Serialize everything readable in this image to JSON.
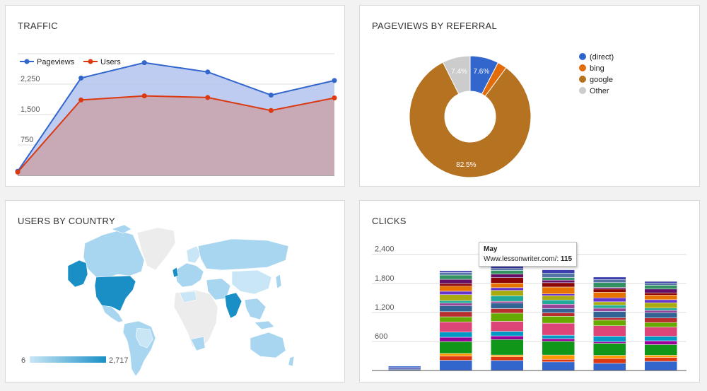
{
  "cards": {
    "traffic": {
      "title": "TRAFFIC"
    },
    "referral": {
      "title": "PAGEVIEWS BY REFERRAL"
    },
    "country": {
      "title": "USERS BY COUNTRY"
    },
    "clicks": {
      "title": "CLICKS"
    }
  },
  "chart_data": [
    {
      "id": "traffic",
      "type": "area",
      "title": "TRAFFIC",
      "legend_position": "top-left",
      "grid": true,
      "y_ticks": [
        "750",
        "1,500",
        "2,250"
      ],
      "ylim": [
        0,
        3000
      ],
      "x": [
        0,
        1,
        2,
        3,
        4,
        5
      ],
      "series": [
        {
          "name": "Pageviews",
          "color": "#3366cc",
          "fill": "#b3c3ee",
          "values": [
            100,
            2400,
            2780,
            2550,
            1980,
            2340
          ]
        },
        {
          "name": "Users",
          "color": "#dc3912",
          "fill": "#c9a3ab",
          "values": [
            80,
            1860,
            1960,
            1920,
            1600,
            1910
          ]
        }
      ]
    },
    {
      "id": "referral",
      "type": "pie",
      "title": "PAGEVIEWS BY REFERRAL",
      "legend_position": "right",
      "donut": true,
      "slices": [
        {
          "name": "(direct)",
          "value": 7.6,
          "label": "7.6%",
          "color": "#3366cc"
        },
        {
          "name": "bing",
          "value": 2.5,
          "label": "",
          "color": "#e36c0a"
        },
        {
          "name": "google",
          "value": 82.5,
          "label": "82.5%",
          "color": "#b57220"
        },
        {
          "name": "Other",
          "value": 7.4,
          "label": "7.4%",
          "color": "#cccccc"
        }
      ]
    },
    {
      "id": "country",
      "type": "heatmap",
      "title": "USERS BY COUNTRY",
      "scale_min_label": "6",
      "scale_max_label": "2,717",
      "scale_colors": [
        "#c9e6f6",
        "#1a8fc6"
      ]
    },
    {
      "id": "clicks",
      "type": "bar",
      "stacked": true,
      "title": "CLICKS",
      "grid": true,
      "y_ticks": [
        "600",
        "1,200",
        "1,800",
        "2,400"
      ],
      "ylim": [
        0,
        2600
      ],
      "totals": [
        90,
        2060,
        2200,
        2080,
        1930,
        1840
      ],
      "palette": [
        "#3366cc",
        "#dc3912",
        "#ff9900",
        "#109618",
        "#990099",
        "#0099c6",
        "#dd4477",
        "#66aa00",
        "#b82e2e",
        "#316395",
        "#994499",
        "#22aa99",
        "#aaaa11",
        "#6633cc",
        "#e67300",
        "#8b0707",
        "#651067",
        "#329262",
        "#5574a6",
        "#3b3eac"
      ],
      "tooltip": {
        "title": "May",
        "label": "Www.lessonwriter.com/:",
        "value": "115"
      }
    }
  ]
}
